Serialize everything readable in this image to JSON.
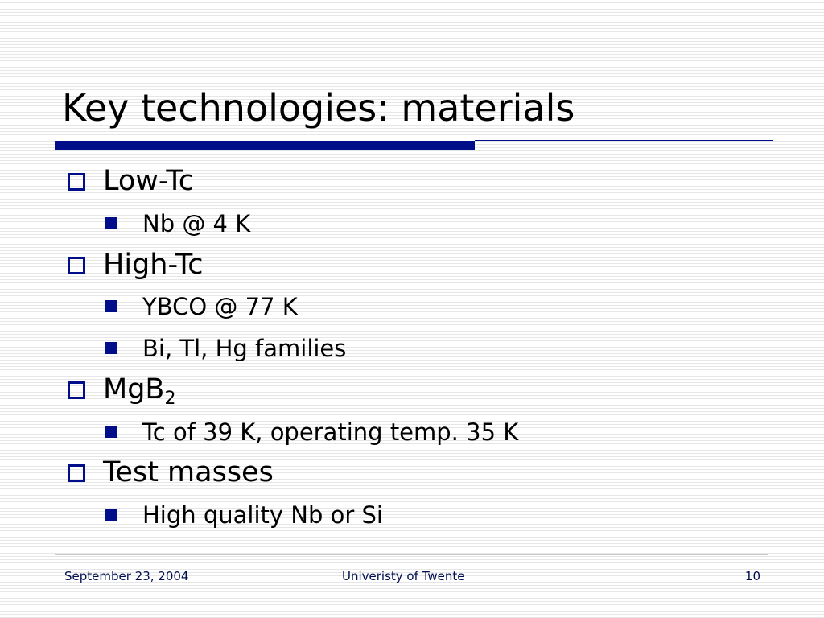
{
  "title": "Key technologies: materials",
  "bullets": [
    {
      "text": "Low-Tc",
      "subitems": [
        "Nb @ 4 K"
      ]
    },
    {
      "text": "High-Tc",
      "subitems": [
        "YBCO @ 77 K",
        "Bi, Tl, Hg families"
      ]
    },
    {
      "text": "MgB",
      "subscript": "2",
      "subitems": [
        "Tc of 39 K, operating temp. 35 K"
      ]
    },
    {
      "text": "Test masses",
      "subitems": [
        "High quality Nb or Si"
      ]
    }
  ],
  "footer": {
    "date": "September 23, 2004",
    "organization": "Univeristy of Twente",
    "page": "10"
  }
}
